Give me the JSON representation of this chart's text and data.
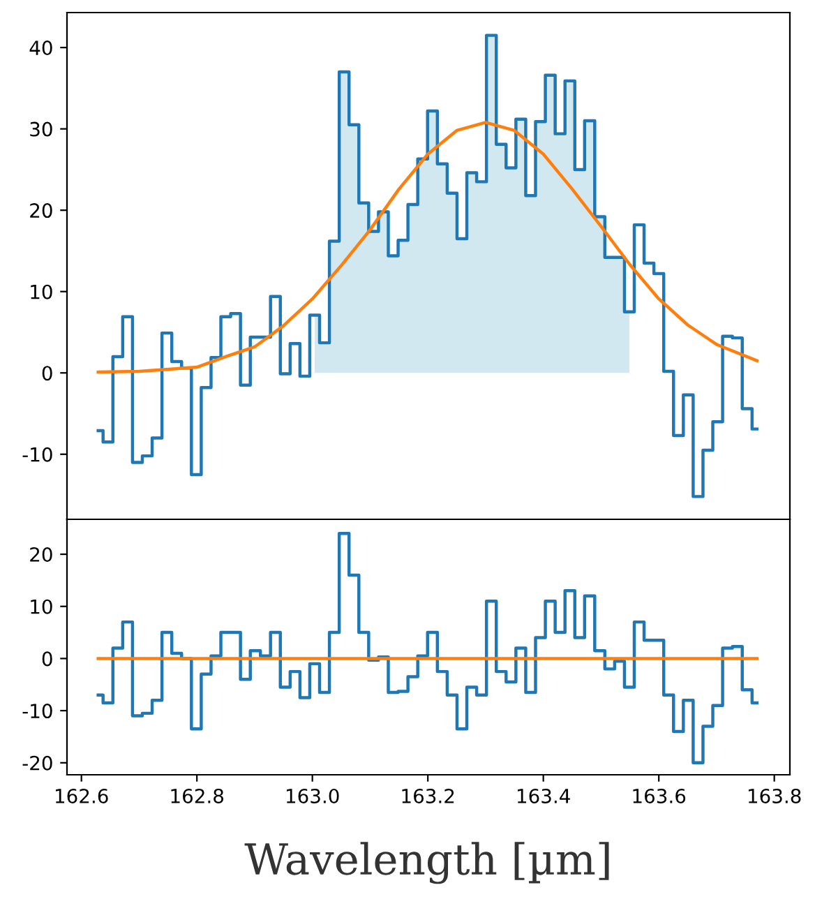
{
  "chart_data": [
    {
      "type": "step",
      "tick_labels": "y",
      "xlim": [
        162.575,
        163.827
      ],
      "ylim": [
        -18,
        44.3
      ],
      "yticks": [
        -10,
        0,
        10,
        20,
        30,
        40
      ],
      "series": [
        {
          "type": "area",
          "color": "#d2e8f0",
          "x": [
            163.004,
            163.021,
            163.038,
            163.055,
            163.072,
            163.089,
            163.106,
            163.123,
            163.14,
            163.157,
            163.174,
            163.191,
            163.208,
            163.225,
            163.242,
            163.259,
            163.276,
            163.293,
            163.31,
            163.327,
            163.344,
            163.361,
            163.378,
            163.395,
            163.412,
            163.429,
            163.446,
            163.463,
            163.48,
            163.498,
            163.515,
            163.532,
            163.549
          ],
          "values": [
            7.1,
            3.7,
            16.2,
            37,
            30.5,
            20.9,
            17.4,
            19.8,
            14.4,
            16.3,
            20.7,
            26.3,
            32.2,
            25.7,
            22.1,
            16.5,
            24.6,
            23.5,
            41.5,
            28.1,
            25.2,
            31.2,
            21.8,
            30.9,
            36.6,
            29.4,
            35.9,
            25,
            31,
            19.2,
            14.2,
            14.2,
            7.5
          ]
        },
        {
          "type": "step",
          "color": "#1f77b4",
          "x": [
            162.629,
            162.646,
            162.663,
            162.68,
            162.697,
            162.714,
            162.731,
            162.748,
            162.765,
            162.782,
            162.799,
            162.816,
            162.833,
            162.85,
            162.867,
            162.884,
            162.901,
            162.919,
            162.936,
            162.953,
            162.97,
            162.987,
            163.004,
            163.021,
            163.038,
            163.055,
            163.072,
            163.089,
            163.106,
            163.123,
            163.14,
            163.157,
            163.174,
            163.191,
            163.208,
            163.225,
            163.242,
            163.259,
            163.276,
            163.293,
            163.31,
            163.327,
            163.344,
            163.361,
            163.378,
            163.395,
            163.412,
            163.429,
            163.446,
            163.463,
            163.48,
            163.498,
            163.515,
            163.532,
            163.549,
            163.566,
            163.583,
            163.6,
            163.617,
            163.634,
            163.651,
            163.668,
            163.685,
            163.702,
            163.719,
            163.736,
            163.753,
            163.77
          ],
          "values": [
            -7.1,
            -8.5,
            2,
            6.9,
            -11,
            -10.2,
            -8,
            4.9,
            1.4,
            0.6,
            -12.5,
            -1.8,
            1.9,
            6.9,
            7.3,
            -1.5,
            4.4,
            4.4,
            9.4,
            -0.1,
            3.6,
            -0.4,
            7.1,
            3.7,
            16.2,
            37,
            30.5,
            20.9,
            17.4,
            19.8,
            14.4,
            16.3,
            20.7,
            26.3,
            32.2,
            25.7,
            22.1,
            16.5,
            24.6,
            23.5,
            41.5,
            28.1,
            25.2,
            31.2,
            21.8,
            30.9,
            36.6,
            29.4,
            35.9,
            25,
            31,
            19.2,
            14.2,
            14.2,
            7.5,
            18.2,
            13.5,
            12.2,
            0.2,
            -7.7,
            -2.7,
            -15.2,
            -9.5,
            -6,
            4.5,
            4.3,
            -4.4,
            -6.9
          ]
        },
        {
          "type": "line",
          "color": "#ff7f0e",
          "x": [
            162.629,
            162.7,
            162.8,
            162.85,
            162.9,
            162.95,
            163.0,
            163.05,
            163.1,
            163.15,
            163.2,
            163.25,
            163.3,
            163.35,
            163.4,
            163.45,
            163.5,
            163.55,
            163.6,
            163.65,
            163.7,
            163.77
          ],
          "values": [
            0.1,
            0.2,
            0.7,
            2.0,
            3.2,
            5.8,
            9.1,
            13.2,
            17.6,
            22.6,
            26.9,
            29.8,
            30.8,
            29.8,
            26.9,
            22.6,
            18.0,
            13.3,
            9.1,
            5.9,
            3.5,
            1.5
          ]
        }
      ]
    },
    {
      "type": "step",
      "xlabel": "Wavelength [µm]",
      "xlim": [
        162.575,
        163.827
      ],
      "ylim": [
        -22.3,
        26.7
      ],
      "xticks": [
        162.6,
        162.8,
        {
          "value": 163.0,
          "label": "163.0"
        },
        163.2,
        163.4,
        163.6,
        163.8
      ],
      "yticks": [
        -20,
        -10,
        0,
        10,
        20
      ],
      "series": [
        {
          "type": "step",
          "color": "#1f77b4",
          "x": [
            162.629,
            162.646,
            162.663,
            162.68,
            162.697,
            162.714,
            162.731,
            162.748,
            162.765,
            162.782,
            162.799,
            162.816,
            162.833,
            162.85,
            162.867,
            162.884,
            162.901,
            162.919,
            162.936,
            162.953,
            162.97,
            162.987,
            163.004,
            163.021,
            163.038,
            163.055,
            163.072,
            163.089,
            163.106,
            163.123,
            163.14,
            163.157,
            163.174,
            163.191,
            163.208,
            163.225,
            163.242,
            163.259,
            163.276,
            163.293,
            163.31,
            163.327,
            163.344,
            163.361,
            163.378,
            163.395,
            163.412,
            163.429,
            163.446,
            163.463,
            163.48,
            163.498,
            163.515,
            163.532,
            163.549,
            163.566,
            163.583,
            163.6,
            163.617,
            163.634,
            163.651,
            163.668,
            163.685,
            163.702,
            163.719,
            163.736,
            163.753,
            163.77
          ],
          "values": [
            -7,
            -8.5,
            2,
            7,
            -11,
            -10.5,
            -8,
            5,
            1,
            0,
            -13.5,
            -3,
            0.5,
            5,
            5,
            -4,
            1.5,
            0.5,
            5,
            -5.5,
            -2.5,
            -7.5,
            -1,
            -6.5,
            5,
            24,
            16,
            5,
            -0.3,
            0.3,
            -6.5,
            -6.3,
            -3.5,
            0.5,
            5,
            -2.5,
            -7,
            -13.5,
            -5.5,
            -7,
            11,
            -2.5,
            -4.5,
            2,
            -6.5,
            4,
            11,
            5,
            13,
            4,
            12,
            1.5,
            -2,
            -0.5,
            -5.5,
            7,
            3.5,
            3.5,
            -7,
            -14,
            -8,
            -20,
            -13,
            -9,
            2,
            2.3,
            -6,
            -8.5
          ]
        },
        {
          "type": "line",
          "color": "#ff7f0e",
          "x": [
            162.629,
            163.77
          ],
          "values": [
            0,
            0
          ]
        }
      ]
    }
  ]
}
